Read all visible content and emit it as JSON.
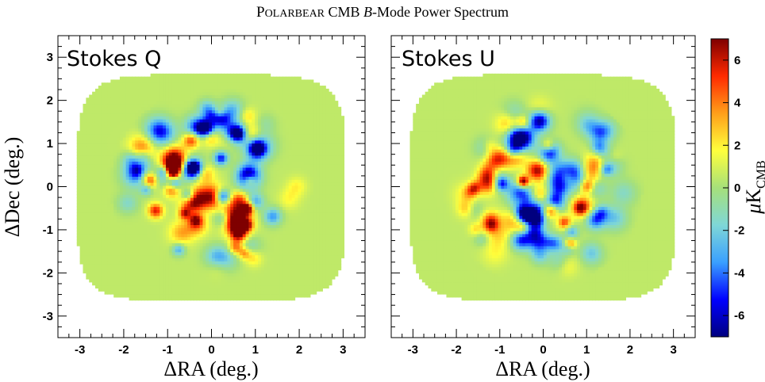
{
  "figure": {
    "title": {
      "sc_first": "P",
      "sc_rest": "OLARBEAR",
      "mid": " CMB ",
      "italic": "B",
      "end": "-Mode Power Spectrum"
    },
    "colorbar": {
      "label_mu": "μ",
      "label_K": "K",
      "label_sub": "CMB",
      "ticks": [
        "6",
        "4",
        "2",
        "0",
        "-2",
        "-4",
        "-6"
      ],
      "range": [
        -7,
        7
      ],
      "colormap": [
        "#00007f",
        "#0000ff",
        "#3aa0ff",
        "#7fd7d7",
        "#a6e07a",
        "#ffff3c",
        "#ff9f1a",
        "#ff2a00",
        "#7f0000"
      ]
    }
  },
  "chart_data": [
    {
      "type": "heatmap",
      "title": "Stokes Q",
      "xlabel_delta": "Δ",
      "xlabel_rest": "RA (deg.)",
      "ylabel_delta": "Δ",
      "ylabel_rest": "Dec (deg.)",
      "xlim": [
        -3.5,
        3.5
      ],
      "ylim": [
        -3.5,
        3.5
      ],
      "xticks": [
        "-3",
        "-2",
        "-1",
        "0",
        "1",
        "2",
        "3"
      ],
      "yticks": [
        "3",
        "2",
        "1",
        "0",
        "-1",
        "-2",
        "-3"
      ],
      "z_unit": "μK_CMB",
      "z_range": [
        -7,
        7
      ],
      "seed": 7
    },
    {
      "type": "heatmap",
      "title": "Stokes U",
      "xlabel_delta": "Δ",
      "xlabel_rest": "RA (deg.)",
      "xlim": [
        -3.5,
        3.5
      ],
      "ylim": [
        -3.5,
        3.5
      ],
      "xticks": [
        "-3",
        "-2",
        "-1",
        "0",
        "1",
        "2",
        "3"
      ],
      "z_unit": "μK_CMB",
      "z_range": [
        -7,
        7
      ],
      "seed": 23
    }
  ]
}
